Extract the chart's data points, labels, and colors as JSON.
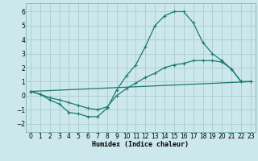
{
  "title": "",
  "xlabel": "Humidex (Indice chaleur)",
  "bg_color": "#cce8ec",
  "grid_color": "#aacccc",
  "line_color": "#1a7a6e",
  "xlim": [
    -0.5,
    23.5
  ],
  "ylim": [
    -2.6,
    6.6
  ],
  "xticks": [
    0,
    1,
    2,
    3,
    4,
    5,
    6,
    7,
    8,
    9,
    10,
    11,
    12,
    13,
    14,
    15,
    16,
    17,
    18,
    19,
    20,
    21,
    22,
    23
  ],
  "yticks": [
    -2,
    -1,
    0,
    1,
    2,
    3,
    4,
    5,
    6
  ],
  "series1_x": [
    0,
    1,
    2,
    3,
    4,
    5,
    6,
    7,
    8,
    9,
    10,
    11,
    12,
    13,
    14,
    15,
    16,
    17,
    18,
    19,
    20,
    21,
    22,
    23
  ],
  "series1_y": [
    0.3,
    0.1,
    -0.3,
    -0.6,
    -1.2,
    -1.3,
    -1.5,
    -1.5,
    -0.9,
    0.4,
    1.4,
    2.2,
    3.5,
    5.0,
    5.7,
    6.0,
    6.0,
    5.2,
    3.8,
    3.0,
    2.5,
    1.9,
    1.0,
    1.0
  ],
  "series2_x": [
    0,
    1,
    2,
    3,
    4,
    5,
    6,
    7,
    8,
    9,
    10,
    11,
    12,
    13,
    14,
    15,
    16,
    17,
    18,
    19,
    20,
    21,
    22,
    23
  ],
  "series2_y": [
    0.3,
    0.1,
    -0.15,
    -0.3,
    -0.5,
    -0.7,
    -0.9,
    -1.0,
    -0.8,
    0.0,
    0.5,
    0.9,
    1.3,
    1.6,
    2.0,
    2.2,
    2.3,
    2.5,
    2.5,
    2.5,
    2.4,
    1.9,
    1.0,
    1.0
  ],
  "series3_x": [
    0,
    23
  ],
  "series3_y": [
    0.3,
    1.0
  ],
  "marker_size": 2.5,
  "line_width": 0.9,
  "xlabel_fontsize": 6.0,
  "tick_fontsize": 5.5
}
